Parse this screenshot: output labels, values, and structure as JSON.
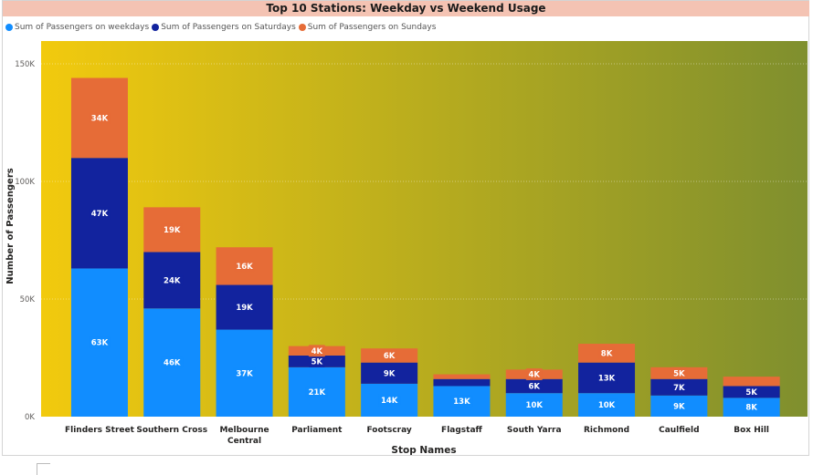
{
  "chart_data": {
    "type": "bar",
    "stacked": true,
    "title": "Top 10 Stations: Weekday vs Weekend Usage",
    "xlabel": "Stop Names",
    "ylabel": "Number of Passengers",
    "ylim": [
      0,
      150000
    ],
    "yticks": [
      0,
      50000,
      100000,
      150000
    ],
    "ytick_labels": [
      "0K",
      "50K",
      "100K",
      "150K"
    ],
    "grid": true,
    "legend_position": "top-left",
    "categories": [
      "Flinders Street",
      "Southern Cross",
      "Melbourne Central",
      "Parliament",
      "Footscray",
      "Flagstaff",
      "South Yarra",
      "Richmond",
      "Caulfield",
      "Box Hill"
    ],
    "category_lines": [
      [
        "Flinders Street"
      ],
      [
        "Southern Cross"
      ],
      [
        "Melbourne",
        "Central"
      ],
      [
        "Parliament"
      ],
      [
        "Footscray"
      ],
      [
        "Flagstaff"
      ],
      [
        "South Yarra"
      ],
      [
        "Richmond"
      ],
      [
        "Caulfield"
      ],
      [
        "Box Hill"
      ]
    ],
    "series": [
      {
        "name": "Sum of Passengers on weekdays",
        "color": "#118dff",
        "values": [
          63000,
          46000,
          37000,
          21000,
          14000,
          13000,
          10000,
          10000,
          9000,
          8000
        ],
        "labels": [
          "63K",
          "46K",
          "37K",
          "21K",
          "14K",
          "13K",
          "10K",
          "10K",
          "9K",
          "8K"
        ]
      },
      {
        "name": "Sum of Passengers on Saturdays",
        "color": "#12239e",
        "values": [
          47000,
          24000,
          19000,
          5000,
          9000,
          3000,
          6000,
          13000,
          7000,
          5000
        ],
        "labels": [
          "47K",
          "24K",
          "19K",
          "5K",
          "9K",
          "",
          "6K",
          "13K",
          "7K",
          "5K"
        ]
      },
      {
        "name": "Sum of Passengers on Sundays",
        "color": "#e66c37",
        "values": [
          34000,
          19000,
          16000,
          4000,
          6000,
          2000,
          4000,
          8000,
          5000,
          4000
        ],
        "labels": [
          "34K",
          "19K",
          "16K",
          "4K",
          "6K",
          "",
          "4K",
          "8K",
          "5K",
          ""
        ]
      }
    ],
    "plot_background": {
      "gradient_from": "#f2ca0e",
      "gradient_to": "#7f8f2e"
    }
  }
}
